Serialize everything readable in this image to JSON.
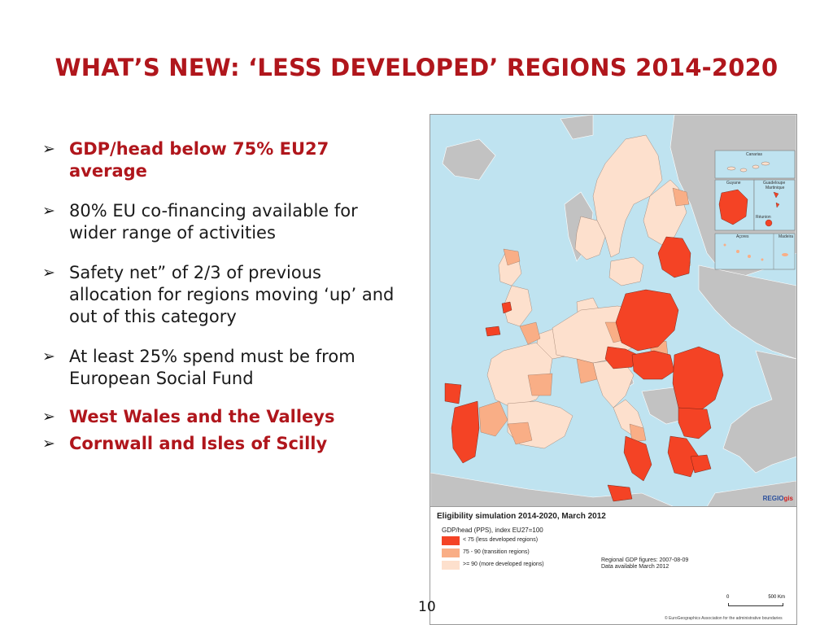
{
  "slide": {
    "title": "WHAT’S NEW: ‘LESS DEVELOPED’ REGIONS 2014-2020",
    "page_number": "10",
    "bullets": [
      {
        "text": "GDP/head below 75% EU27 average",
        "emphasis": true
      },
      {
        "text": "80% EU co-financing available for wider range of activities",
        "emphasis": false
      },
      {
        "text": "Safety net” of 2/3 of previous allocation for regions moving ‘up’ and out of this category",
        "emphasis": false
      },
      {
        "text": "At least 25% spend must be from European Social Fund",
        "emphasis": false
      },
      {
        "text": "West Wales and the Valleys",
        "emphasis": true
      },
      {
        "text": "Cornwall and Isles of Scilly",
        "emphasis": true
      }
    ],
    "bullet_icon": "arrow-right-icon"
  },
  "map": {
    "insets": {
      "canarias": "Canarias",
      "guyane": "Guyane",
      "guadeloupe": "Guadeloupe",
      "martinique": "Martinique",
      "reunion": "Réunion",
      "acores": "Açores",
      "madeira": "Madeira"
    },
    "brand_prefix": "REGIO",
    "brand_suffix": "gis",
    "colors": {
      "less_developed": "#f44325",
      "transition": "#f9ae86",
      "more_developed": "#fde0cd",
      "non_eu": "#c2c2c2",
      "sea": "#bfe3f0",
      "title_red": "#b0161c"
    }
  },
  "legend": {
    "title": "Eligibility simulation 2014-2020, March 2012",
    "subtitle": "GDP/head (PPS), index EU27=100",
    "items": [
      {
        "label": "< 75 (less developed regions)",
        "color": "#f44325"
      },
      {
        "label": "75 - 90 (transition regions)",
        "color": "#f9ae86"
      },
      {
        "label": ">= 90 (more developed regions)",
        "color": "#fde0cd"
      }
    ],
    "note_line1": "Regional GDP figures: 2007-08-09",
    "note_line2": "Data available March 2012",
    "scale_start": "0",
    "scale_end": "500 Km",
    "copyright": "© EuroGeographics Association for the administrative boundaries"
  }
}
